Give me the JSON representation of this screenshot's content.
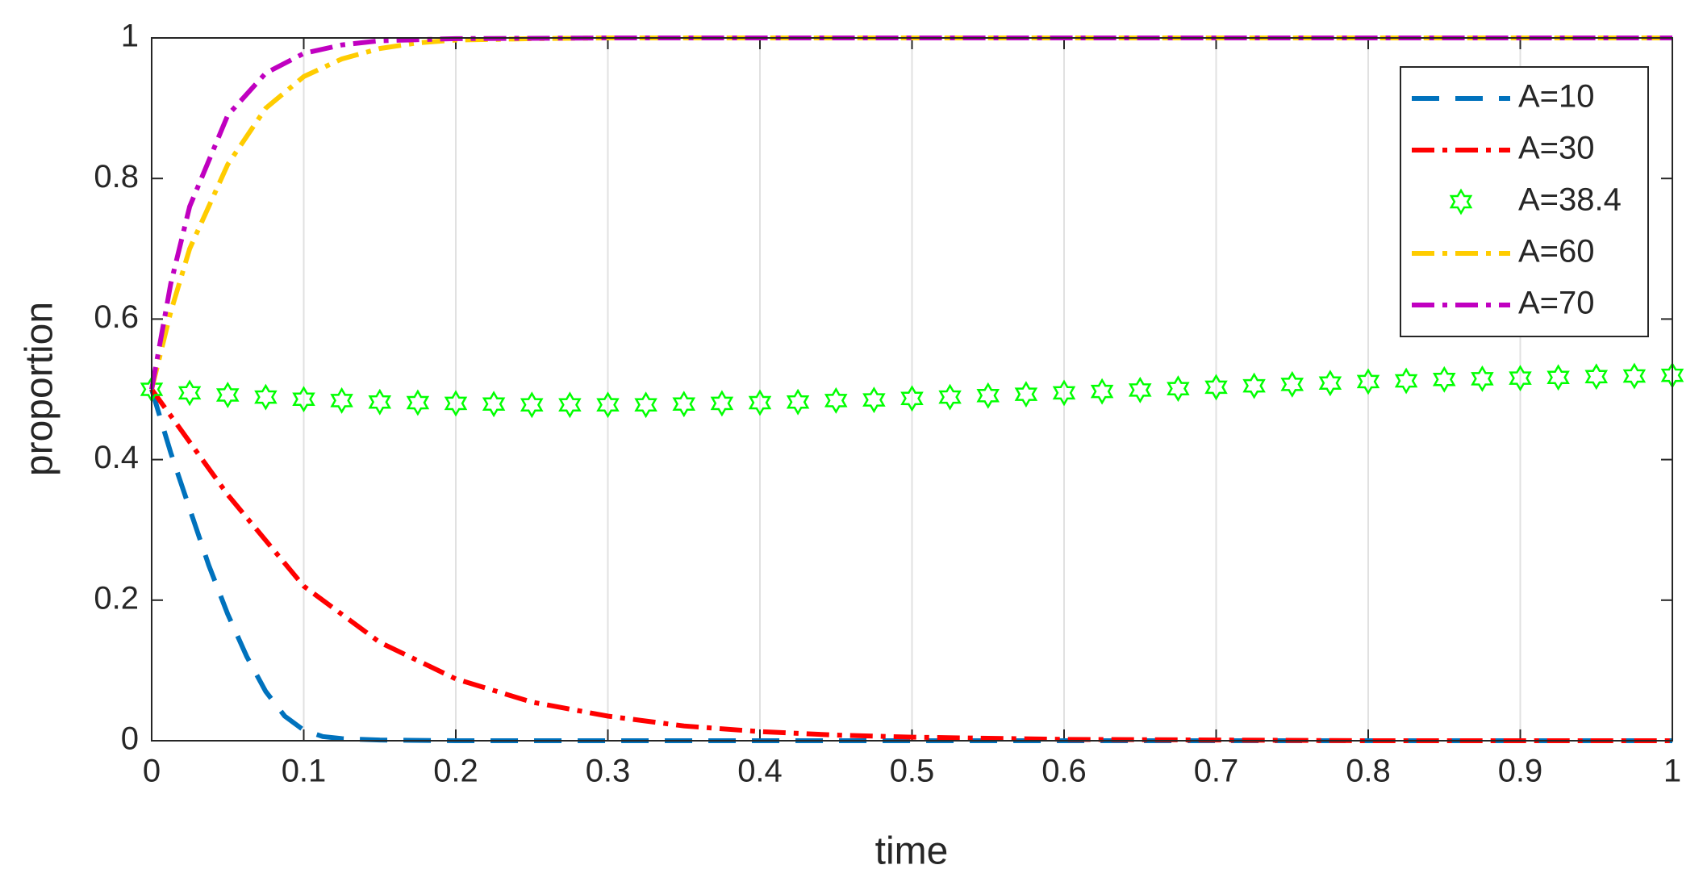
{
  "chart_data": {
    "type": "line",
    "x_label": "time",
    "y_label": "proportion",
    "xlim": [
      0,
      1
    ],
    "ylim": [
      0,
      1
    ],
    "xticks": [
      0,
      0.1,
      0.2,
      0.3,
      0.4,
      0.5,
      0.6,
      0.7,
      0.8,
      0.9,
      1
    ],
    "yticks": [
      0,
      0.2,
      0.4,
      0.6,
      0.8,
      1
    ],
    "xgrid": true,
    "legend": "top-right",
    "series": [
      {
        "name": "A=10",
        "color": "#0072bd",
        "linestyle": "dash",
        "x": [
          0,
          0.0125,
          0.025,
          0.0375,
          0.05,
          0.0625,
          0.075,
          0.0875,
          0.1,
          0.1125,
          0.125,
          0.15,
          0.2,
          0.3,
          0.4,
          0.5,
          0.6,
          0.7,
          0.8,
          0.9,
          1
        ],
        "values": [
          0.5,
          0.41,
          0.33,
          0.25,
          0.18,
          0.12,
          0.07,
          0.035,
          0.015,
          0.006,
          0.003,
          0.001,
          0,
          0,
          0,
          0,
          0,
          0,
          0,
          0,
          0
        ]
      },
      {
        "name": "A=30",
        "color": "#ff0000",
        "linestyle": "dashdot",
        "x": [
          0,
          0.05,
          0.1,
          0.15,
          0.2,
          0.25,
          0.3,
          0.35,
          0.4,
          0.45,
          0.5,
          0.6,
          0.7,
          0.8,
          0.9,
          1
        ],
        "values": [
          0.5,
          0.35,
          0.22,
          0.14,
          0.088,
          0.055,
          0.035,
          0.021,
          0.013,
          0.008,
          0.005,
          0.002,
          0.001,
          0,
          0,
          0
        ]
      },
      {
        "name": "A=38.4",
        "color": "#00ff00",
        "linestyle": "none",
        "marker": "hexagram",
        "x": [
          0,
          0.025,
          0.05,
          0.075,
          0.1,
          0.125,
          0.15,
          0.175,
          0.2,
          0.225,
          0.25,
          0.275,
          0.3,
          0.325,
          0.35,
          0.375,
          0.4,
          0.425,
          0.45,
          0.475,
          0.5,
          0.525,
          0.55,
          0.575,
          0.6,
          0.625,
          0.65,
          0.675,
          0.7,
          0.725,
          0.75,
          0.775,
          0.8,
          0.825,
          0.85,
          0.875,
          0.9,
          0.925,
          0.95,
          0.975,
          1
        ],
        "values": [
          0.5,
          0.495,
          0.492,
          0.489,
          0.486,
          0.484,
          0.482,
          0.481,
          0.48,
          0.479,
          0.478,
          0.478,
          0.478,
          0.478,
          0.479,
          0.48,
          0.481,
          0.482,
          0.484,
          0.485,
          0.487,
          0.489,
          0.491,
          0.493,
          0.495,
          0.497,
          0.499,
          0.501,
          0.503,
          0.505,
          0.507,
          0.509,
          0.511,
          0.512,
          0.514,
          0.515,
          0.516,
          0.517,
          0.518,
          0.519,
          0.52
        ]
      },
      {
        "name": "A=60",
        "color": "#ffcc00",
        "linestyle": "dashdot",
        "x": [
          0,
          0.0125,
          0.025,
          0.05,
          0.075,
          0.1,
          0.125,
          0.15,
          0.175,
          0.2,
          0.25,
          0.3,
          0.5,
          0.7,
          1
        ],
        "values": [
          0.5,
          0.61,
          0.7,
          0.82,
          0.9,
          0.945,
          0.97,
          0.985,
          0.993,
          0.997,
          0.999,
          1,
          1,
          1,
          1
        ]
      },
      {
        "name": "A=70",
        "color": "#c000c0",
        "linestyle": "dashdot",
        "x": [
          0,
          0.0125,
          0.025,
          0.05,
          0.075,
          0.1,
          0.125,
          0.15,
          0.2,
          0.3,
          0.5,
          0.7,
          1
        ],
        "values": [
          0.5,
          0.65,
          0.76,
          0.89,
          0.95,
          0.978,
          0.99,
          0.996,
          0.999,
          1,
          1,
          1,
          1
        ]
      }
    ]
  }
}
